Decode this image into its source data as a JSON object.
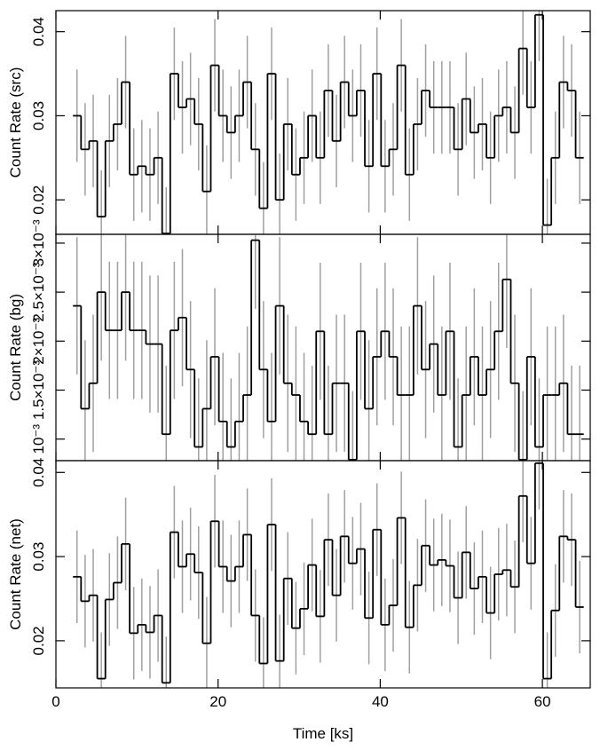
{
  "chart_data": [
    {
      "type": "step",
      "ylabel": "Count Rate (src)",
      "color": "#000000",
      "error_color": "#a0a0a0",
      "ylim": [
        0.0159,
        0.0425
      ],
      "yticks": [
        0.02,
        0.03,
        0.04
      ],
      "error": 0.0055,
      "values": [
        0.03,
        0.026,
        0.027,
        0.018,
        0.027,
        0.029,
        0.034,
        0.023,
        0.024,
        0.023,
        0.025,
        0.016,
        0.035,
        0.031,
        0.032,
        0.029,
        0.021,
        0.036,
        0.03,
        0.028,
        0.03,
        0.034,
        0.026,
        0.019,
        0.035,
        0.02,
        0.029,
        0.023,
        0.025,
        0.03,
        0.025,
        0.033,
        0.027,
        0.034,
        0.03,
        0.033,
        0.024,
        0.035,
        0.024,
        0.026,
        0.036,
        0.023,
        0.029,
        0.033,
        0.031,
        0.031,
        0.031,
        0.026,
        0.032,
        0.028,
        0.029,
        0.025,
        0.03,
        0.031,
        0.028,
        0.038,
        0.031,
        0.042,
        0.017,
        0.025,
        0.034,
        0.033,
        0.025
      ]
    },
    {
      "type": "step",
      "ylabel": "Count Rate (bg)",
      "color": "#000000",
      "error_color": "#a0a0a0",
      "ylim": [
        0.00078,
        0.00309
      ],
      "error": 0.0007,
      "yticks": [
        {
          "value": 0.001,
          "label": "10⁻³"
        },
        {
          "value": 0.0015,
          "label": "1.5×10⁻³"
        },
        {
          "value": 0.002,
          "label": "2×10⁻³"
        },
        {
          "value": 0.0025,
          "label": "2.5×10⁻³"
        },
        {
          "value": 0.003,
          "label": "3×10⁻³"
        }
      ],
      "values": [
        0.00236,
        0.00131,
        0.00157,
        0.0025,
        0.00211,
        0.00211,
        0.0025,
        0.00211,
        0.00211,
        0.00197,
        0.00197,
        0.00105,
        0.00211,
        0.00224,
        0.00171,
        0.00092,
        0.00131,
        0.00184,
        0.00118,
        0.00092,
        0.00118,
        0.00145,
        0.00303,
        0.00171,
        0.00118,
        0.00236,
        0.00157,
        0.00145,
        0.00118,
        0.00105,
        0.0021,
        0.00105,
        0.00157,
        0.00157,
        0.00079,
        0.0021,
        0.00131,
        0.00184,
        0.0021,
        0.00184,
        0.00145,
        0.00145,
        0.00236,
        0.00171,
        0.00197,
        0.00145,
        0.0021,
        0.00092,
        0.00145,
        0.00184,
        0.00145,
        0.00171,
        0.0021,
        0.00263,
        0.00157,
        0.00079,
        0.00184,
        0.00092,
        0.00145,
        0.00145,
        0.00157,
        0.00105,
        0.00105
      ]
    },
    {
      "type": "step",
      "ylabel": "Count Rate (net)",
      "color": "#000000",
      "error_color": "#a0a0a0",
      "ylim": [
        0.0144,
        0.0414
      ],
      "yticks": [
        0.02,
        0.03,
        0.04
      ],
      "error": 0.0055,
      "xlabel": "Time [ks]",
      "xlim": [
        0,
        65.9
      ],
      "xticks": [
        0,
        20,
        40,
        60
      ],
      "x": [
        2.6,
        3.6,
        4.6,
        5.6,
        6.6,
        7.6,
        8.6,
        9.6,
        10.6,
        11.6,
        12.6,
        13.6,
        14.6,
        15.6,
        16.6,
        17.6,
        18.6,
        19.6,
        20.6,
        21.6,
        22.6,
        23.6,
        24.6,
        25.6,
        26.6,
        27.6,
        28.6,
        29.6,
        30.6,
        31.6,
        32.6,
        33.6,
        34.6,
        35.6,
        36.6,
        37.6,
        38.6,
        39.6,
        40.6,
        41.6,
        42.6,
        43.6,
        44.6,
        45.6,
        46.6,
        47.6,
        48.6,
        49.6,
        50.6,
        51.6,
        52.6,
        53.6,
        54.6,
        55.6,
        56.6,
        57.6,
        58.6,
        59.6,
        60.6,
        61.6,
        62.6,
        63.6,
        64.6
      ],
      "values": [
        0.0276,
        0.0247,
        0.0254,
        0.0155,
        0.0249,
        0.0269,
        0.0315,
        0.0209,
        0.0219,
        0.021,
        0.023,
        0.015,
        0.0329,
        0.0288,
        0.0303,
        0.0281,
        0.0197,
        0.0342,
        0.0288,
        0.0271,
        0.0288,
        0.0326,
        0.023,
        0.0173,
        0.0338,
        0.0176,
        0.0274,
        0.0215,
        0.0238,
        0.029,
        0.0229,
        0.032,
        0.0254,
        0.0324,
        0.0292,
        0.0309,
        0.0227,
        0.0332,
        0.0219,
        0.0242,
        0.0346,
        0.0216,
        0.0266,
        0.0313,
        0.029,
        0.0296,
        0.0289,
        0.0251,
        0.0305,
        0.0262,
        0.0276,
        0.0233,
        0.0279,
        0.0284,
        0.0264,
        0.0372,
        0.0292,
        0.0411,
        0.0155,
        0.0236,
        0.0324,
        0.032,
        0.024
      ]
    }
  ]
}
